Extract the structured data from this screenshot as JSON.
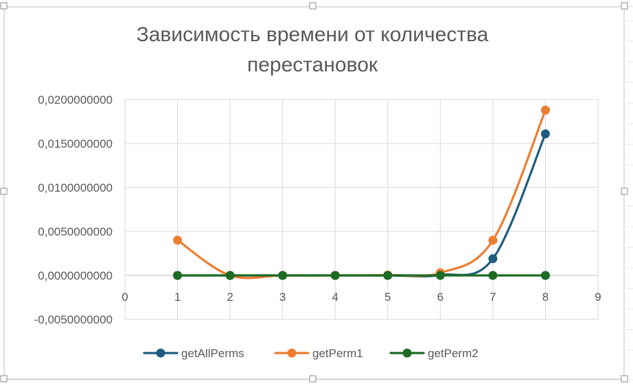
{
  "chart_data": {
    "type": "line",
    "title_lines": [
      "Зависимость времени от количества",
      "перестановок"
    ],
    "xlabel": "",
    "ylabel": "",
    "xlim": [
      0,
      9
    ],
    "ylim": [
      -0.005,
      0.02
    ],
    "x_ticks": [
      0,
      1,
      2,
      3,
      4,
      5,
      6,
      7,
      8,
      9
    ],
    "x_tick_labels": [
      "0",
      "1",
      "2",
      "3",
      "4",
      "5",
      "6",
      "7",
      "8",
      "9"
    ],
    "y_ticks": [
      -0.005,
      0,
      0.005,
      0.01,
      0.015,
      0.02
    ],
    "y_tick_labels": [
      "-0,0050000000",
      "0,0000000000",
      "0,0050000000",
      "0,0100000000",
      "0,0150000000",
      "0,0200000000"
    ],
    "grid": "horizontal and vertical",
    "legend_position": "bottom",
    "smooth": true,
    "x": [
      1,
      2,
      3,
      4,
      5,
      6,
      7,
      8
    ],
    "series": [
      {
        "name": "getAllPerms",
        "color": "#1f5c7f",
        "values": [
          0.0,
          0.0,
          0.0,
          0.0,
          0.0,
          5e-05,
          0.0019,
          0.0161
        ]
      },
      {
        "name": "getPerm1",
        "color": "#ed7d31",
        "values": [
          0.004,
          0.0,
          0.0,
          0.0,
          5e-05,
          0.0003,
          0.004,
          0.0188
        ]
      },
      {
        "name": "getPerm2",
        "color": "#1e6b24",
        "values": [
          0.0,
          0.0,
          0.0,
          0.0,
          0.0,
          0.0,
          0.0,
          0.0
        ]
      }
    ]
  }
}
